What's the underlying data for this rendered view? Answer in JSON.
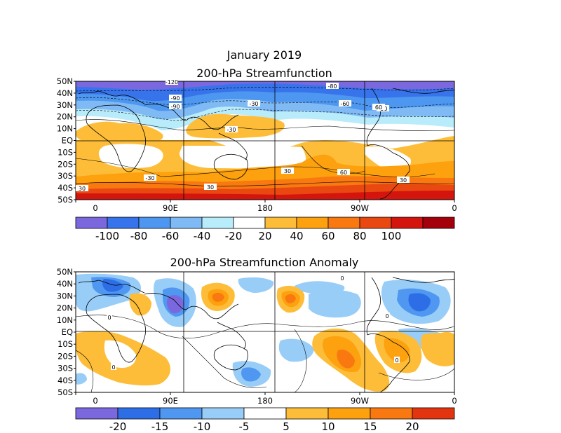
{
  "titles": {
    "main": "January 2019",
    "top": "200-hPa Streamfunction",
    "bottom": "200-hPa Streamfunction Anomaly"
  },
  "axes": {
    "lat_labels": [
      "50N",
      "40N",
      "30N",
      "20N",
      "10N",
      "EQ",
      "10S",
      "20S",
      "30S",
      "40S",
      "50S"
    ],
    "lon_labels": [
      "0",
      "90E",
      "180",
      "90W",
      "0"
    ]
  },
  "colors": {
    "top_levels": [
      "#7b68de",
      "#3773eb",
      "#4d97f0",
      "#7fbaf5",
      "#b9ecfb",
      "#ffffff",
      "#fdbd38",
      "#fda10e",
      "#f97810",
      "#ea4811",
      "#d4150e",
      "#a4000c"
    ],
    "anom_levels": [
      "#7b68de",
      "#2d6ee6",
      "#4f97f0",
      "#98cdf8",
      "#ffffff",
      "#fdbd38",
      "#fda10e",
      "#f97810",
      "#e2350f"
    ]
  },
  "chart_data": [
    {
      "type": "heatmap",
      "title": "200-hPa Streamfunction",
      "xlim": [
        0,
        360
      ],
      "ylim": [
        -50,
        50
      ],
      "x_ticks": [
        "0",
        "90E",
        "180",
        "90W",
        "0"
      ],
      "y_ticks": [
        "50N",
        "40N",
        "30N",
        "20N",
        "10N",
        "EQ",
        "10S",
        "20S",
        "30S",
        "40S",
        "50S"
      ],
      "colorbar_labels": [
        "-100",
        "-80",
        "-60",
        "-40",
        "-20",
        "20",
        "40",
        "60",
        "80",
        "100"
      ],
      "contour_labels": [
        "-120",
        "-90",
        "-90",
        "-80",
        "-60",
        "-30",
        "-30",
        "-30",
        "-30",
        "30",
        "30",
        "30",
        "30",
        "60",
        "60"
      ],
      "grid": true
    },
    {
      "type": "heatmap",
      "title": "200-hPa Streamfunction Anomaly",
      "xlim": [
        0,
        360
      ],
      "ylim": [
        -50,
        50
      ],
      "x_ticks": [
        "0",
        "90E",
        "180",
        "90W",
        "0"
      ],
      "y_ticks": [
        "50N",
        "40N",
        "30N",
        "20N",
        "10N",
        "EQ",
        "10S",
        "20S",
        "30S",
        "40S",
        "50S"
      ],
      "colorbar_labels": [
        "-20",
        "-15",
        "-10",
        "-5",
        "5",
        "10",
        "15",
        "20"
      ],
      "contour_labels": [
        "0",
        "0",
        "0",
        "0",
        "0"
      ],
      "grid": true
    }
  ]
}
